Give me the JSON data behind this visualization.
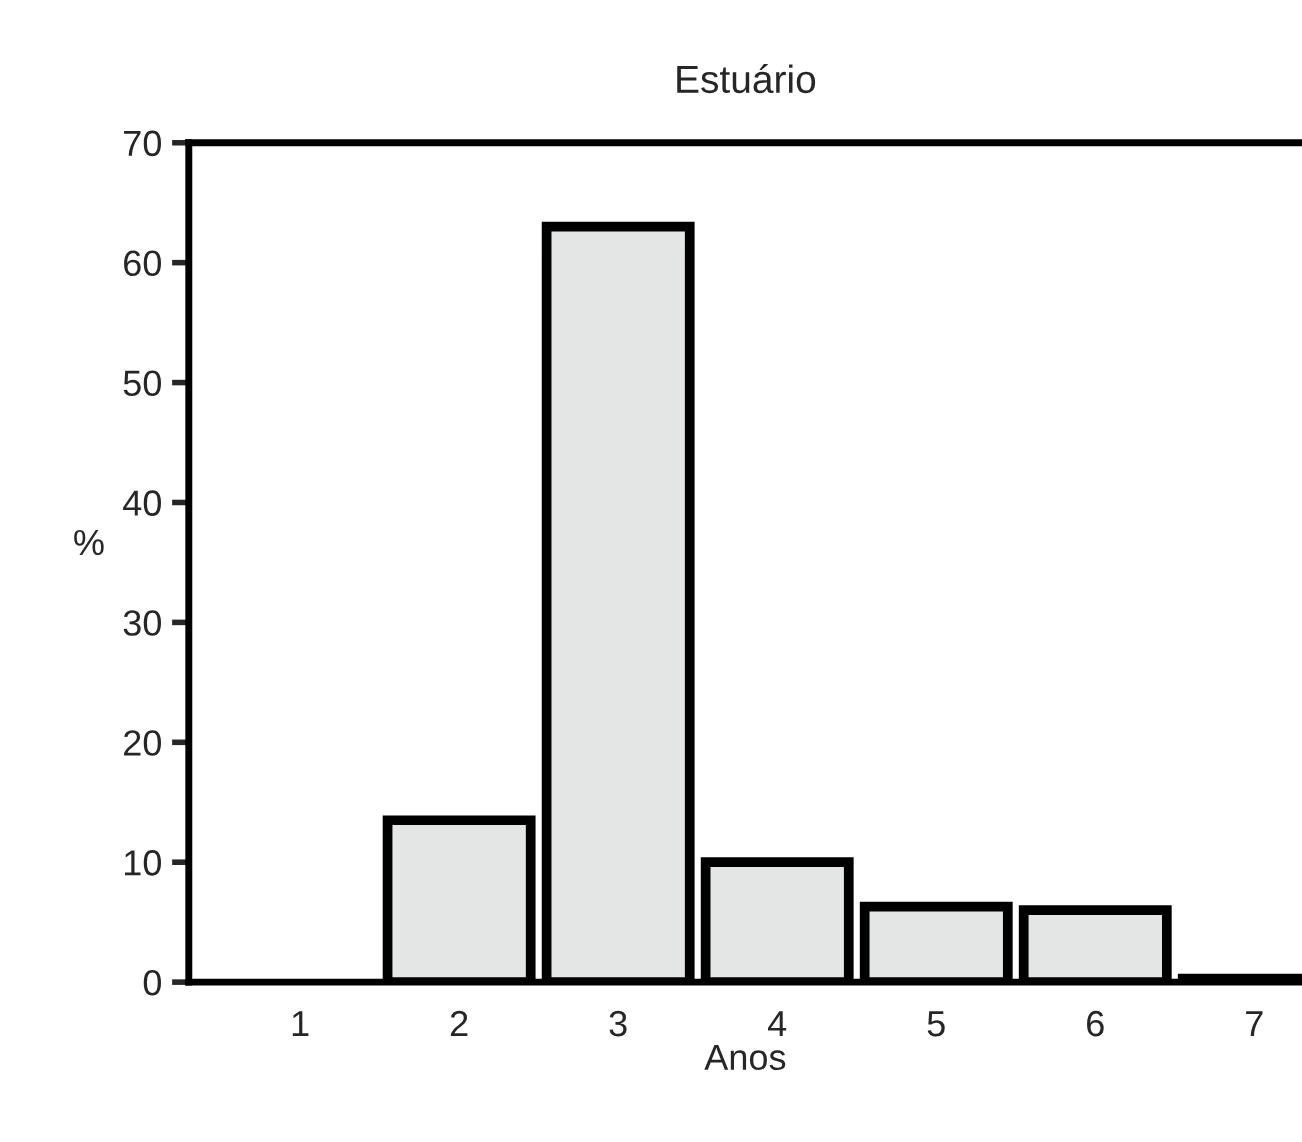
{
  "chart_data": {
    "type": "bar",
    "title": "Estuário",
    "xlabel": "Anos",
    "ylabel": "%",
    "categories": [
      "1",
      "2",
      "3",
      "4",
      "5",
      "6",
      "7"
    ],
    "values": [
      null,
      13.5,
      63,
      10,
      6.3,
      6,
      0.3
    ],
    "color": "#e4e6e6",
    "ylim": [
      0,
      70
    ],
    "yticks": [
      0,
      10,
      20,
      30,
      40,
      50,
      60,
      70
    ],
    "grid": false
  }
}
